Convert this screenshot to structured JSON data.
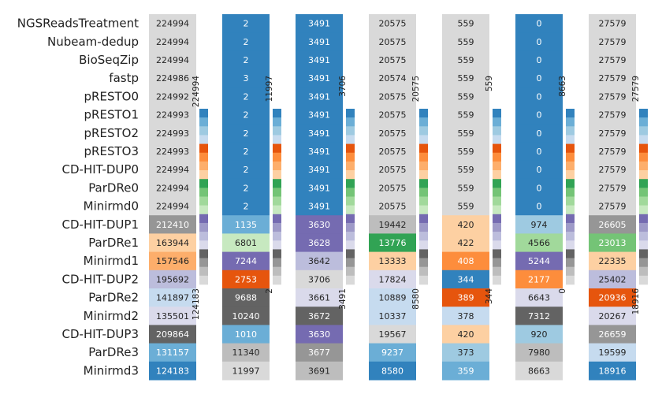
{
  "chart_data": {
    "type": "heatmap",
    "title": "",
    "rows": [
      "NGSReadsTreatment",
      "Nubeam-dedup",
      "BioSeqZip",
      "fastp",
      "pRESTO0",
      "pRESTO1",
      "pRESTO2",
      "pRESTO3",
      "CD-HIT-DUP0",
      "ParDRe0",
      "Minirmd0",
      "CD-HIT-DUP1",
      "ParDRe1",
      "Minirmd1",
      "CD-HIT-DUP2",
      "ParDRe2",
      "Minirmd2",
      "CD-HIT-DUP3",
      "ParDRe3",
      "Minirmd3"
    ],
    "columns": [
      {
        "values": [
          224994,
          224994,
          224994,
          224986,
          224992,
          224993,
          224993,
          224993,
          224994,
          224994,
          224994,
          212410,
          163944,
          157546,
          195692,
          141897,
          135501,
          209864,
          131157,
          124183
        ],
        "colors": [
          "#d9d9d9",
          "#d9d9d9",
          "#d9d9d9",
          "#d9d9d9",
          "#d9d9d9",
          "#d9d9d9",
          "#d9d9d9",
          "#d9d9d9",
          "#d9d9d9",
          "#d9d9d9",
          "#d9d9d9",
          "#969696",
          "#fdd0a2",
          "#fdae6b",
          "#bcbddc",
          "#c6dbef",
          "#dadaeb",
          "#636363",
          "#6baed6",
          "#3182bd"
        ],
        "top_label": "224994",
        "bottom_label": "124183"
      },
      {
        "values": [
          2,
          2,
          2,
          3,
          2,
          2,
          2,
          2,
          2,
          2,
          2,
          1135,
          6801,
          7244,
          2753,
          9688,
          10240,
          1010,
          11340,
          11997
        ],
        "colors": [
          "#3182bd",
          "#3182bd",
          "#3182bd",
          "#3182bd",
          "#3182bd",
          "#3182bd",
          "#3182bd",
          "#3182bd",
          "#3182bd",
          "#3182bd",
          "#3182bd",
          "#6baed6",
          "#c7e9c0",
          "#756bb1",
          "#e6550d",
          "#636363",
          "#636363",
          "#6baed6",
          "#bdbdbd",
          "#d9d9d9"
        ],
        "top_label": "11997",
        "bottom_label": "2"
      },
      {
        "values": [
          3491,
          3491,
          3491,
          3491,
          3491,
          3491,
          3491,
          3491,
          3491,
          3491,
          3491,
          3630,
          3628,
          3642,
          3706,
          3661,
          3672,
          3630,
          3677,
          3691
        ],
        "colors": [
          "#3182bd",
          "#3182bd",
          "#3182bd",
          "#3182bd",
          "#3182bd",
          "#3182bd",
          "#3182bd",
          "#3182bd",
          "#3182bd",
          "#3182bd",
          "#3182bd",
          "#756bb1",
          "#756bb1",
          "#bcbddc",
          "#d9d9d9",
          "#dadaeb",
          "#636363",
          "#756bb1",
          "#969696",
          "#bdbdbd"
        ],
        "top_label": "3706",
        "bottom_label": "3491"
      },
      {
        "values": [
          20575,
          20575,
          20575,
          20574,
          20575,
          20575,
          20575,
          20575,
          20575,
          20575,
          20575,
          19442,
          13776,
          13333,
          17824,
          10889,
          10337,
          19567,
          9237,
          8580
        ],
        "colors": [
          "#d9d9d9",
          "#d9d9d9",
          "#d9d9d9",
          "#d9d9d9",
          "#d9d9d9",
          "#d9d9d9",
          "#d9d9d9",
          "#d9d9d9",
          "#d9d9d9",
          "#d9d9d9",
          "#d9d9d9",
          "#bdbdbd",
          "#31a354",
          "#fdd0a2",
          "#dadaeb",
          "#c6dbef",
          "#c6dbef",
          "#d9d9d9",
          "#6baed6",
          "#3182bd"
        ],
        "top_label": "20575",
        "bottom_label": "8580"
      },
      {
        "values": [
          559,
          559,
          559,
          559,
          559,
          559,
          559,
          559,
          559,
          559,
          559,
          420,
          422,
          408,
          344,
          389,
          378,
          420,
          373,
          359
        ],
        "colors": [
          "#d9d9d9",
          "#d9d9d9",
          "#d9d9d9",
          "#d9d9d9",
          "#d9d9d9",
          "#d9d9d9",
          "#d9d9d9",
          "#d9d9d9",
          "#d9d9d9",
          "#d9d9d9",
          "#d9d9d9",
          "#fdd0a2",
          "#fdd0a2",
          "#fd8d3c",
          "#3182bd",
          "#e6550d",
          "#c6dbef",
          "#fdd0a2",
          "#9ecae1",
          "#6baed6"
        ],
        "top_label": "559",
        "bottom_label": "344"
      },
      {
        "values": [
          0,
          0,
          0,
          0,
          0,
          0,
          0,
          0,
          0,
          0,
          0,
          974,
          4566,
          5244,
          2177,
          6643,
          7312,
          920,
          7980,
          8663
        ],
        "colors": [
          "#3182bd",
          "#3182bd",
          "#3182bd",
          "#3182bd",
          "#3182bd",
          "#3182bd",
          "#3182bd",
          "#3182bd",
          "#3182bd",
          "#3182bd",
          "#3182bd",
          "#9ecae1",
          "#a1d99b",
          "#756bb1",
          "#fd8d3c",
          "#dadaeb",
          "#636363",
          "#9ecae1",
          "#bdbdbd",
          "#d9d9d9"
        ],
        "top_label": "8663",
        "bottom_label": "0"
      },
      {
        "values": [
          27579,
          27579,
          27579,
          27579,
          27579,
          27579,
          27579,
          27579,
          27579,
          27579,
          27579,
          26605,
          23013,
          22335,
          25402,
          20936,
          20267,
          26659,
          19599,
          18916
        ],
        "colors": [
          "#d9d9d9",
          "#d9d9d9",
          "#d9d9d9",
          "#d9d9d9",
          "#d9d9d9",
          "#d9d9d9",
          "#d9d9d9",
          "#d9d9d9",
          "#d9d9d9",
          "#d9d9d9",
          "#d9d9d9",
          "#969696",
          "#74c476",
          "#fdd0a2",
          "#bcbddc",
          "#e6550d",
          "#dadaeb",
          "#969696",
          "#c6dbef",
          "#3182bd"
        ],
        "top_label": "27579",
        "bottom_label": "18916"
      }
    ],
    "colorbar_palette": [
      "#3182bd",
      "#6baed6",
      "#9ecae1",
      "#c6dbef",
      "#e6550d",
      "#fd8d3c",
      "#fdae6b",
      "#fdd0a2",
      "#31a354",
      "#74c476",
      "#a1d99b",
      "#c7e9c0",
      "#756bb1",
      "#9e9ac8",
      "#bcbddc",
      "#dadaeb",
      "#636363",
      "#969696",
      "#bdbdbd",
      "#d9d9d9"
    ],
    "dark_text_colors": [
      "#d9d9d9",
      "#c6dbef",
      "#dadaeb",
      "#bdbdbd",
      "#fdd0a2",
      "#c7e9c0",
      "#bcbddc",
      "#9ecae1",
      "#a1d99b",
      "#fdae6b"
    ]
  }
}
